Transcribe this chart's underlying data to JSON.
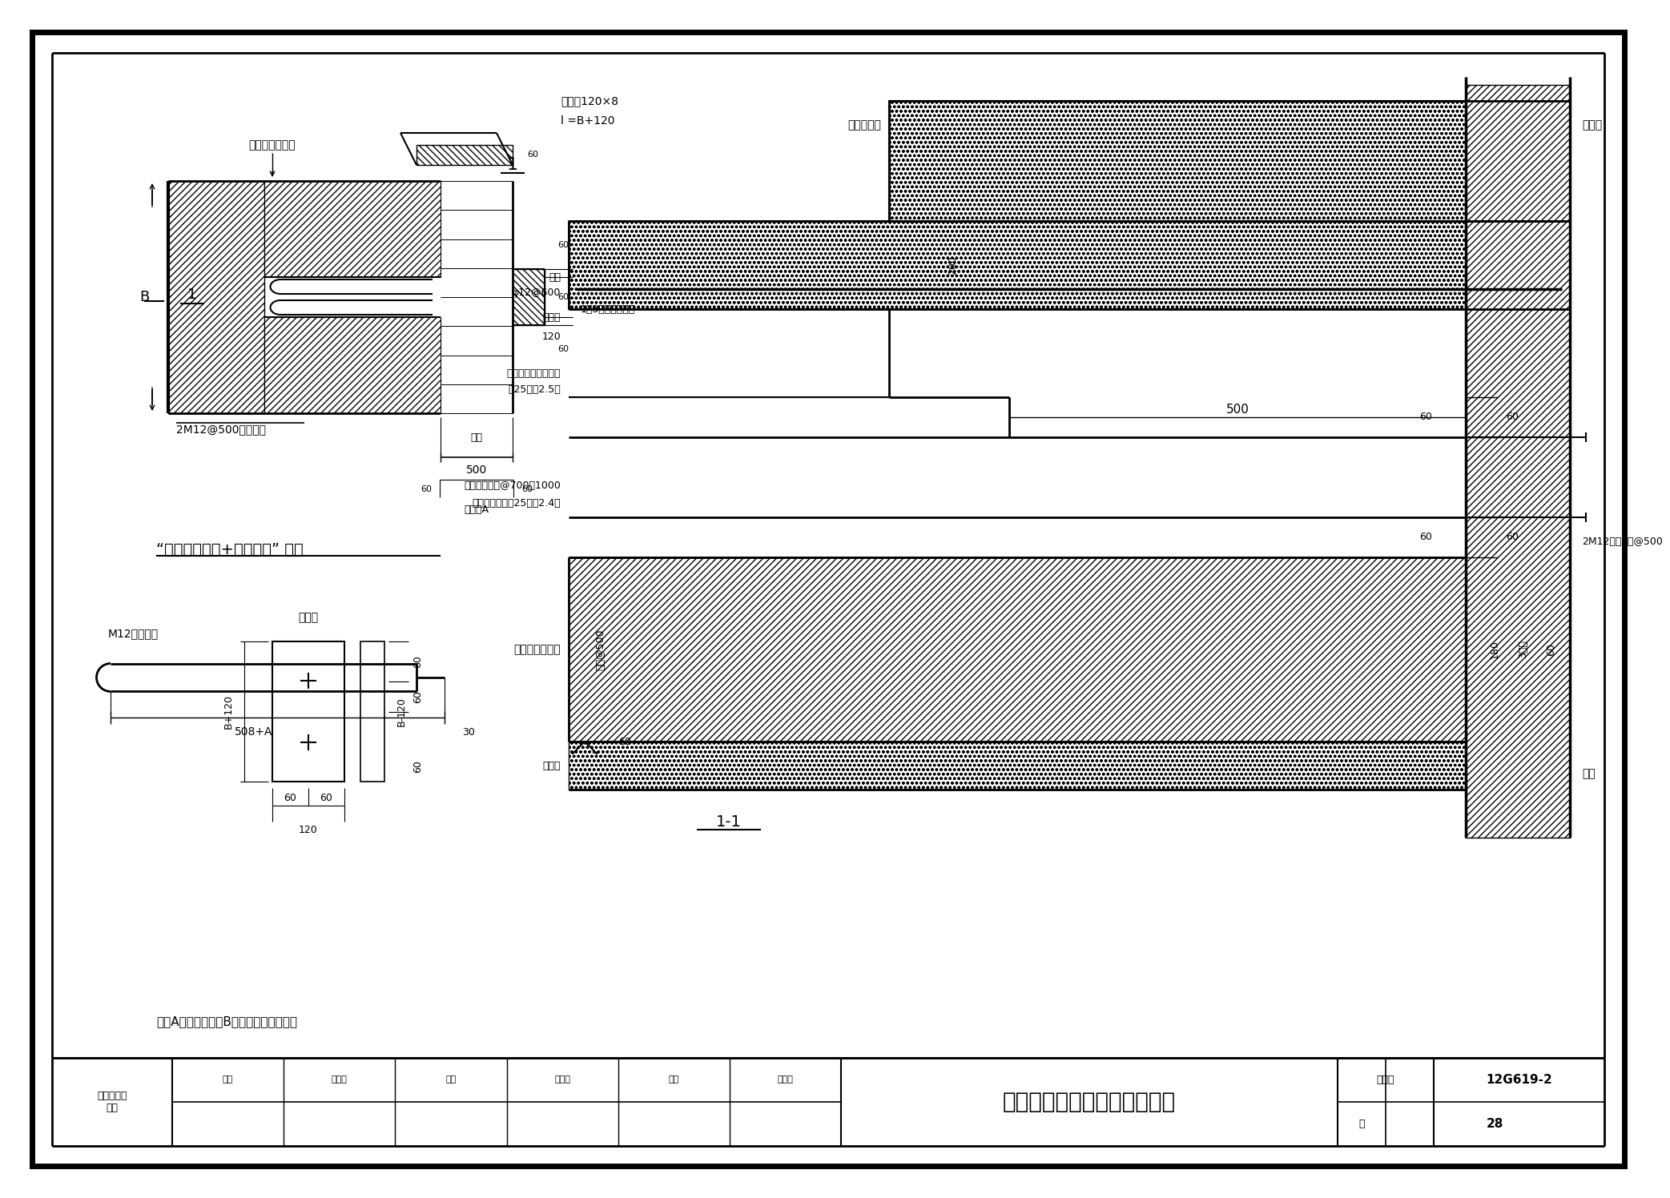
{
  "title": "新增砌体抗震墙加固节点详图",
  "figure_number": "12G619-2",
  "page": "28",
  "category": "新增抗震墙\n加固",
  "background_color": "#ffffff",
  "note_text": "注：A表示原墙厚，B表示新增砌体墙厚。",
  "scheme_label": "“内砌拉结螺栓+混凝土带” 方案",
  "section_label": "1-1",
  "personnel_top": [
    "审核",
    "胡孔国",
    "校对",
    "汪训流",
    "设计",
    "刘玲利"
  ],
  "fig_label": "图集号",
  "page_label": "页",
  "annotations_left_top": {
    "new_wall": "新增砌体抗震墙",
    "bolt": "2M12@500拉结螺栓",
    "mortar": "1：3水泥砂浆抹平",
    "orig_wall": "原墙",
    "orig_thick": "原墙厚A",
    "plate_label": "钢垫板120×8",
    "plate_dim": "l =B+120",
    "dim_500": "500",
    "dim_60a": "60",
    "dim_60b": "60",
    "B_label": "B",
    "section_num": "1"
  },
  "annotations_bottom_left": {
    "bolt_label": "M12拉结螺栓",
    "plate_label2": "钢垫板",
    "dim_508A": "508+A",
    "dim_30": "30",
    "dim_B120": "B+120",
    "dim_B_120": "B-120",
    "dim_60_60": "60",
    "dim_120": "120"
  },
  "annotations_right": {
    "orig_conc_beam": "原混凝土梁",
    "orig_ring_beam": "原圈梁",
    "stirrup": "箍筋",
    "stirrup_dim": "φ12@600",
    "slab_bot": "楼板底",
    "pressure_beam": "压顶梁配筋见本图集\n第25页第2.5条",
    "fine_conc": "细石混凝土带@700～1000\n配筋见本图集第25页第2.4条",
    "new_wall_r": "新增砌体抗震墙",
    "slab_face": "楼板面",
    "orig_wall_r": "原墙",
    "bolt_r": "2M12拉结螺栓@500",
    "dim_500r": "500",
    "dim_200": "200",
    "dim_120r": "120",
    "dim_180": "180",
    "dim_3brick": "3皮砖",
    "dim_60r": "60",
    "vert_rebar": "竖筋@500"
  }
}
